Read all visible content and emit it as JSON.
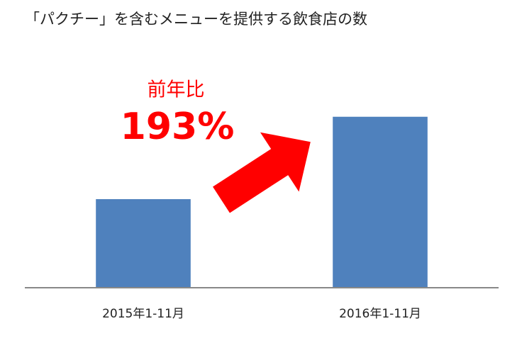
{
  "chart_data": {
    "type": "bar",
    "title": "「パクチー」を含むメニューを提供する飲食店の数",
    "categories": [
      "2015年1-11月",
      "2016年1-11月"
    ],
    "values": [
      100,
      193
    ],
    "color": "#4f81bd",
    "ylim": [
      0,
      240
    ],
    "annotations": [
      "前年比",
      "193%"
    ],
    "annotation_color": "#ff0000"
  }
}
